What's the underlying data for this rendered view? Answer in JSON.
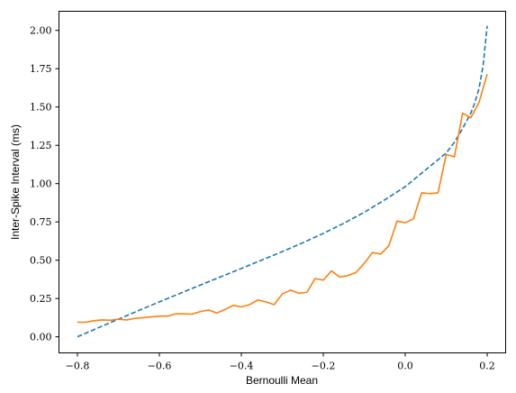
{
  "chart_data": {
    "type": "line",
    "title": "",
    "xlabel": "Bernoulli Mean",
    "ylabel": "Inter-Spike Interval (ms)",
    "xlim": [
      -0.845,
      0.245
    ],
    "ylim": [
      -0.105,
      2.125
    ],
    "x_ticks": [
      -0.8,
      -0.6,
      -0.4,
      -0.2,
      0.0,
      0.2
    ],
    "x_tick_labels": [
      "−0.8",
      "−0.6",
      "−0.4",
      "−0.2",
      "0.0",
      "0.2"
    ],
    "y_ticks": [
      0.0,
      0.25,
      0.5,
      0.75,
      1.0,
      1.25,
      1.5,
      1.75,
      2.0
    ],
    "y_tick_labels": [
      "0.00",
      "0.25",
      "0.50",
      "0.75",
      "1.00",
      "1.25",
      "1.50",
      "1.75",
      "2.00"
    ],
    "grid": false,
    "series": [
      {
        "style": "dashed",
        "color": "#1f77b4",
        "x": [
          -0.8,
          -0.75,
          -0.7,
          -0.65,
          -0.6,
          -0.55,
          -0.5,
          -0.45,
          -0.4,
          -0.35,
          -0.3,
          -0.25,
          -0.2,
          -0.15,
          -0.1,
          -0.05,
          0.0,
          0.05,
          0.1,
          0.12,
          0.14,
          0.16,
          0.17,
          0.18,
          0.19,
          0.2
        ],
        "y": [
          0.0,
          0.058,
          0.115,
          0.172,
          0.228,
          0.283,
          0.338,
          0.392,
          0.446,
          0.501,
          0.556,
          0.614,
          0.675,
          0.741,
          0.813,
          0.894,
          0.98,
          1.09,
          1.2,
          1.27,
          1.36,
          1.46,
          1.53,
          1.62,
          1.77,
          2.03
        ]
      },
      {
        "style": "solid",
        "color": "#ff7f0e",
        "x": [
          -0.8,
          -0.78,
          -0.76,
          -0.74,
          -0.72,
          -0.7,
          -0.68,
          -0.66,
          -0.64,
          -0.62,
          -0.6,
          -0.58,
          -0.56,
          -0.54,
          -0.52,
          -0.5,
          -0.48,
          -0.46,
          -0.44,
          -0.42,
          -0.4,
          -0.38,
          -0.36,
          -0.34,
          -0.32,
          -0.3,
          -0.28,
          -0.26,
          -0.24,
          -0.22,
          -0.2,
          -0.18,
          -0.16,
          -0.14,
          -0.12,
          -0.1,
          -0.08,
          -0.06,
          -0.04,
          -0.02,
          0.0,
          0.02,
          0.04,
          0.06,
          0.08,
          0.1,
          0.12,
          0.14,
          0.16,
          0.18,
          0.2
        ],
        "y": [
          0.095,
          0.095,
          0.105,
          0.11,
          0.108,
          0.115,
          0.11,
          0.12,
          0.125,
          0.13,
          0.135,
          0.135,
          0.15,
          0.15,
          0.148,
          0.165,
          0.175,
          0.155,
          0.178,
          0.205,
          0.195,
          0.21,
          0.24,
          0.228,
          0.21,
          0.28,
          0.305,
          0.285,
          0.29,
          0.38,
          0.37,
          0.43,
          0.39,
          0.4,
          0.42,
          0.48,
          0.55,
          0.54,
          0.595,
          0.755,
          0.745,
          0.77,
          0.94,
          0.935,
          0.94,
          1.19,
          1.175,
          1.46,
          1.43,
          1.53,
          1.715
        ]
      }
    ]
  }
}
